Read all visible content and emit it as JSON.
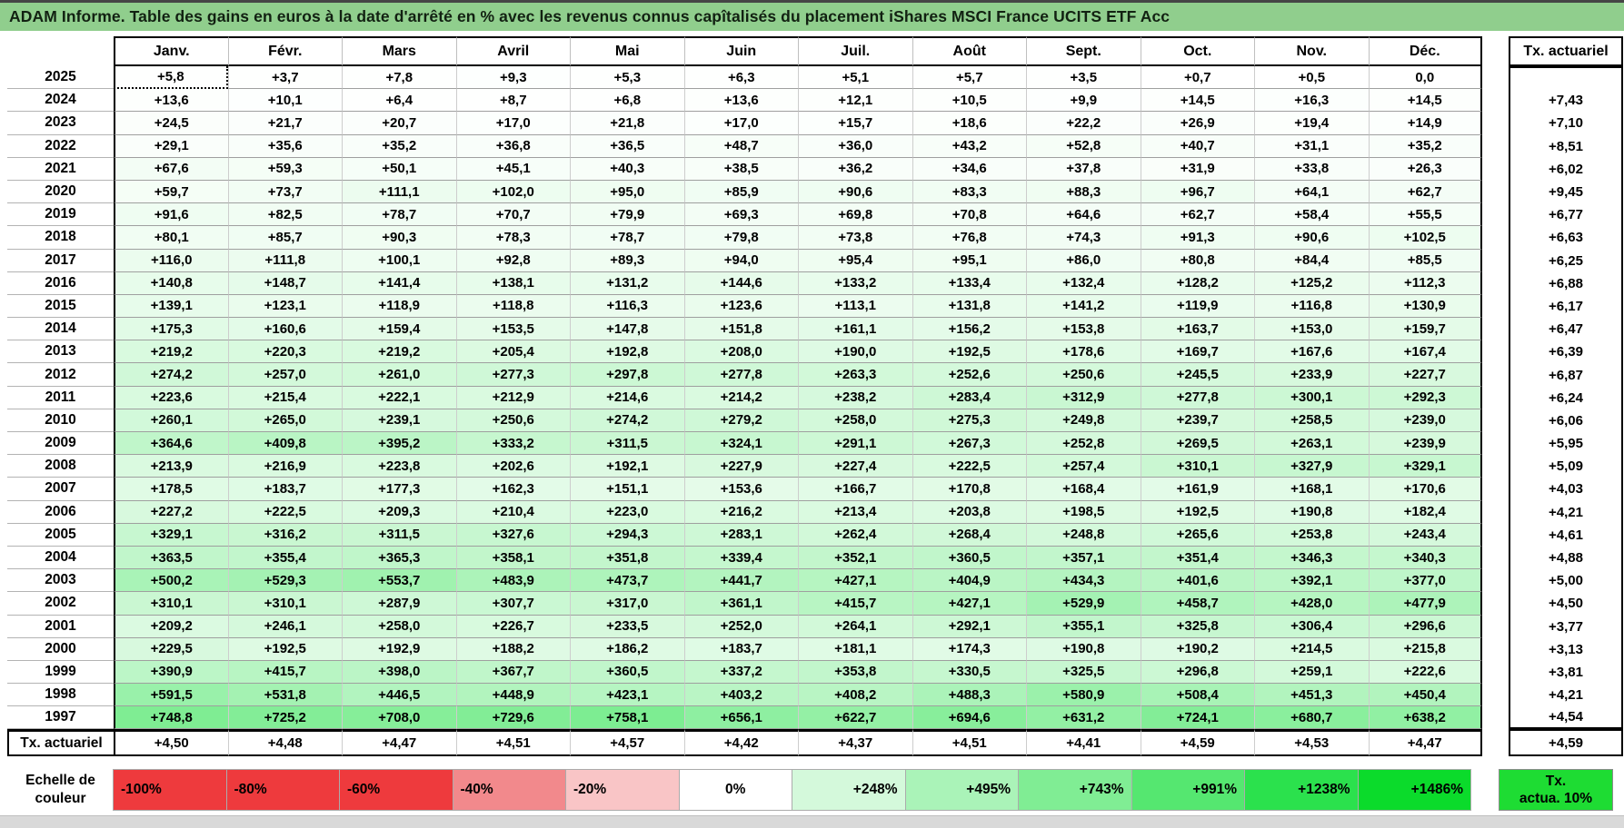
{
  "title": "ADAM Informe. Table des gains en euros à la date d'arrêté en % avec les revenus connus capîtalisés du placement iShares MSCI France UCITS ETF Acc",
  "colors": {
    "title_bg": "#90ce8d",
    "gain_max_green": "#00db29",
    "scale_max_value": 1486
  },
  "table": {
    "month_headers": [
      "Janv.",
      "Févr.",
      "Mars",
      "Avril",
      "Mai",
      "Juin",
      "Juil.",
      "Août",
      "Sept.",
      "Oct.",
      "Nov.",
      "Déc."
    ],
    "right_header": "Tx. actuariel",
    "bottom_label": "Tx. actuariel",
    "rows": [
      {
        "year": "2025",
        "values": [
          "+5,8",
          "+3,7",
          "+7,8",
          "+9,3",
          "+5,3",
          "+6,3",
          "+5,1",
          "+5,7",
          "+3,5",
          "+0,7",
          "+0,5",
          "0,0"
        ],
        "tx": ""
      },
      {
        "year": "2024",
        "values": [
          "+13,6",
          "+10,1",
          "+6,4",
          "+8,7",
          "+6,8",
          "+13,6",
          "+12,1",
          "+10,5",
          "+9,9",
          "+14,5",
          "+16,3",
          "+14,5"
        ],
        "tx": "+7,43"
      },
      {
        "year": "2023",
        "values": [
          "+24,5",
          "+21,7",
          "+20,7",
          "+17,0",
          "+21,8",
          "+17,0",
          "+15,7",
          "+18,6",
          "+22,2",
          "+26,9",
          "+19,4",
          "+14,9"
        ],
        "tx": "+7,10"
      },
      {
        "year": "2022",
        "values": [
          "+29,1",
          "+35,6",
          "+35,2",
          "+36,8",
          "+36,5",
          "+48,7",
          "+36,0",
          "+43,2",
          "+52,8",
          "+40,7",
          "+31,1",
          "+35,2"
        ],
        "tx": "+8,51"
      },
      {
        "year": "2021",
        "values": [
          "+67,6",
          "+59,3",
          "+50,1",
          "+45,1",
          "+40,3",
          "+38,5",
          "+36,2",
          "+34,6",
          "+37,8",
          "+31,9",
          "+33,8",
          "+26,3"
        ],
        "tx": "+6,02"
      },
      {
        "year": "2020",
        "values": [
          "+59,7",
          "+73,7",
          "+111,1",
          "+102,0",
          "+95,0",
          "+85,9",
          "+90,6",
          "+83,3",
          "+88,3",
          "+96,7",
          "+64,1",
          "+62,7"
        ],
        "tx": "+9,45"
      },
      {
        "year": "2019",
        "values": [
          "+91,6",
          "+82,5",
          "+78,7",
          "+70,7",
          "+79,9",
          "+69,3",
          "+69,8",
          "+70,8",
          "+64,6",
          "+62,7",
          "+58,4",
          "+55,5"
        ],
        "tx": "+6,77"
      },
      {
        "year": "2018",
        "values": [
          "+80,1",
          "+85,7",
          "+90,3",
          "+78,3",
          "+78,7",
          "+79,8",
          "+73,8",
          "+76,8",
          "+74,3",
          "+91,3",
          "+90,6",
          "+102,5"
        ],
        "tx": "+6,63"
      },
      {
        "year": "2017",
        "values": [
          "+116,0",
          "+111,8",
          "+100,1",
          "+92,8",
          "+89,3",
          "+94,0",
          "+95,4",
          "+95,1",
          "+86,0",
          "+80,8",
          "+84,4",
          "+85,5"
        ],
        "tx": "+6,25"
      },
      {
        "year": "2016",
        "values": [
          "+140,8",
          "+148,7",
          "+141,4",
          "+138,1",
          "+131,2",
          "+144,6",
          "+133,2",
          "+133,4",
          "+132,4",
          "+128,2",
          "+125,2",
          "+112,3"
        ],
        "tx": "+6,88"
      },
      {
        "year": "2015",
        "values": [
          "+139,1",
          "+123,1",
          "+118,9",
          "+118,8",
          "+116,3",
          "+123,6",
          "+113,1",
          "+131,8",
          "+141,2",
          "+119,9",
          "+116,8",
          "+130,9"
        ],
        "tx": "+6,17"
      },
      {
        "year": "2014",
        "values": [
          "+175,3",
          "+160,6",
          "+159,4",
          "+153,5",
          "+147,8",
          "+151,8",
          "+161,1",
          "+156,2",
          "+153,8",
          "+163,7",
          "+153,0",
          "+159,7"
        ],
        "tx": "+6,47"
      },
      {
        "year": "2013",
        "values": [
          "+219,2",
          "+220,3",
          "+219,2",
          "+205,4",
          "+192,8",
          "+208,0",
          "+190,0",
          "+192,5",
          "+178,6",
          "+169,7",
          "+167,6",
          "+167,4"
        ],
        "tx": "+6,39"
      },
      {
        "year": "2012",
        "values": [
          "+274,2",
          "+257,0",
          "+261,0",
          "+277,3",
          "+297,8",
          "+277,8",
          "+263,3",
          "+252,6",
          "+250,6",
          "+245,5",
          "+233,9",
          "+227,7"
        ],
        "tx": "+6,87"
      },
      {
        "year": "2011",
        "values": [
          "+223,6",
          "+215,4",
          "+222,1",
          "+212,9",
          "+214,6",
          "+214,2",
          "+238,2",
          "+283,4",
          "+312,9",
          "+277,8",
          "+300,1",
          "+292,3"
        ],
        "tx": "+6,24"
      },
      {
        "year": "2010",
        "values": [
          "+260,1",
          "+265,0",
          "+239,1",
          "+250,6",
          "+274,2",
          "+279,2",
          "+258,0",
          "+275,3",
          "+249,8",
          "+239,7",
          "+258,5",
          "+239,0"
        ],
        "tx": "+6,06"
      },
      {
        "year": "2009",
        "values": [
          "+364,6",
          "+409,8",
          "+395,2",
          "+333,2",
          "+311,5",
          "+324,1",
          "+291,1",
          "+267,3",
          "+252,8",
          "+269,5",
          "+263,1",
          "+239,9"
        ],
        "tx": "+5,95"
      },
      {
        "year": "2008",
        "values": [
          "+213,9",
          "+216,9",
          "+223,8",
          "+202,6",
          "+192,1",
          "+227,9",
          "+227,4",
          "+222,5",
          "+257,4",
          "+310,1",
          "+327,9",
          "+329,1"
        ],
        "tx": "+5,09"
      },
      {
        "year": "2007",
        "values": [
          "+178,5",
          "+183,7",
          "+177,3",
          "+162,3",
          "+151,1",
          "+153,6",
          "+166,7",
          "+170,8",
          "+168,4",
          "+161,9",
          "+168,1",
          "+170,6"
        ],
        "tx": "+4,03"
      },
      {
        "year": "2006",
        "values": [
          "+227,2",
          "+222,5",
          "+209,3",
          "+210,4",
          "+223,0",
          "+216,2",
          "+213,4",
          "+203,8",
          "+198,5",
          "+192,5",
          "+190,8",
          "+182,4"
        ],
        "tx": "+4,21"
      },
      {
        "year": "2005",
        "values": [
          "+329,1",
          "+316,2",
          "+311,5",
          "+327,6",
          "+294,3",
          "+283,1",
          "+262,4",
          "+268,4",
          "+248,8",
          "+265,6",
          "+253,8",
          "+243,4"
        ],
        "tx": "+4,61"
      },
      {
        "year": "2004",
        "values": [
          "+363,5",
          "+355,4",
          "+365,3",
          "+358,1",
          "+351,8",
          "+339,4",
          "+352,1",
          "+360,5",
          "+357,1",
          "+351,4",
          "+346,3",
          "+340,3"
        ],
        "tx": "+4,88"
      },
      {
        "year": "2003",
        "values": [
          "+500,2",
          "+529,3",
          "+553,7",
          "+483,9",
          "+473,7",
          "+441,7",
          "+427,1",
          "+404,9",
          "+434,3",
          "+401,6",
          "+392,1",
          "+377,0"
        ],
        "tx": "+5,00"
      },
      {
        "year": "2002",
        "values": [
          "+310,1",
          "+310,1",
          "+287,9",
          "+307,7",
          "+317,0",
          "+361,1",
          "+415,7",
          "+427,1",
          "+529,9",
          "+458,7",
          "+428,0",
          "+477,9"
        ],
        "tx": "+4,50"
      },
      {
        "year": "2001",
        "values": [
          "+209,2",
          "+246,1",
          "+258,0",
          "+226,7",
          "+233,5",
          "+252,0",
          "+264,1",
          "+292,1",
          "+355,1",
          "+325,8",
          "+306,4",
          "+296,6"
        ],
        "tx": "+3,77"
      },
      {
        "year": "2000",
        "values": [
          "+229,5",
          "+192,5",
          "+192,9",
          "+188,2",
          "+186,2",
          "+183,7",
          "+181,1",
          "+174,3",
          "+190,8",
          "+190,2",
          "+214,5",
          "+215,8"
        ],
        "tx": "+3,13"
      },
      {
        "year": "1999",
        "values": [
          "+390,9",
          "+415,7",
          "+398,0",
          "+367,7",
          "+360,5",
          "+337,2",
          "+353,8",
          "+330,5",
          "+325,5",
          "+296,8",
          "+259,1",
          "+222,6"
        ],
        "tx": "+3,81"
      },
      {
        "year": "1998",
        "values": [
          "+591,5",
          "+531,8",
          "+446,5",
          "+448,9",
          "+423,1",
          "+403,2",
          "+408,2",
          "+488,3",
          "+580,9",
          "+508,4",
          "+451,3",
          "+450,4"
        ],
        "tx": "+4,21"
      },
      {
        "year": "1997",
        "values": [
          "+748,8",
          "+725,2",
          "+708,0",
          "+729,6",
          "+758,1",
          "+656,1",
          "+622,7",
          "+694,6",
          "+631,2",
          "+724,1",
          "+680,7",
          "+638,2"
        ],
        "tx": "+4,54"
      }
    ],
    "bottom_values": [
      "+4,50",
      "+4,48",
      "+4,47",
      "+4,51",
      "+4,57",
      "+4,42",
      "+4,37",
      "+4,51",
      "+4,41",
      "+4,59",
      "+4,53",
      "+4,47"
    ],
    "bottom_tx": "+4,59"
  },
  "scale": {
    "label_line1": "Echelle de",
    "label_line2": "couleur",
    "cells": [
      {
        "label": "-100%",
        "color": "#ee3a3d",
        "align": "left"
      },
      {
        "label": "-80%",
        "color": "#ee3a3d",
        "align": "left"
      },
      {
        "label": "-60%",
        "color": "#ee3a3d",
        "align": "left"
      },
      {
        "label": "-40%",
        "color": "#f2898c",
        "align": "left"
      },
      {
        "label": "-20%",
        "color": "#f9c5c6",
        "align": "left"
      },
      {
        "label": "0%",
        "color": "#ffffff",
        "align": "center"
      },
      {
        "label": "+248%",
        "color": "#d4f9db",
        "align": "right"
      },
      {
        "label": "+495%",
        "color": "#aaf3b8",
        "align": "right"
      },
      {
        "label": "+743%",
        "color": "#80ed94",
        "align": "right"
      },
      {
        "label": "+991%",
        "color": "#55e770",
        "align": "right"
      },
      {
        "label": "+1238%",
        "color": "#2be14d",
        "align": "right"
      },
      {
        "label": "+1486%",
        "color": "#0bdb2b",
        "align": "right"
      }
    ],
    "right_box": {
      "line1": "Tx.",
      "line2": "actua. 10%",
      "color": "#1edc33"
    }
  }
}
